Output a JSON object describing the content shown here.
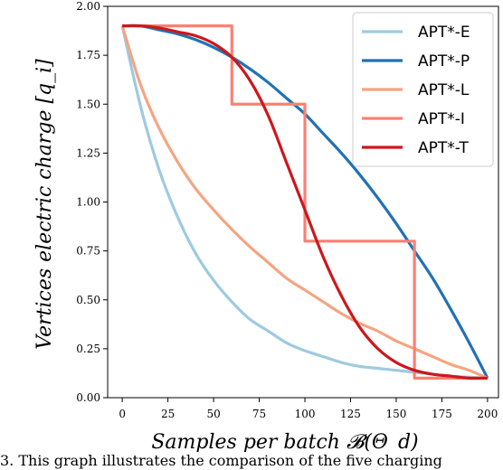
{
  "chart_data": {
    "type": "line",
    "xlabel": "Samples per batch 𝓑(Θ_d)",
    "ylabel": "Vertices electric charge [q_i]",
    "xlim": [
      -8,
      206
    ],
    "ylim": [
      0,
      2.0
    ],
    "xticks": [
      "0",
      "25",
      "50",
      "75",
      "100",
      "125",
      "150",
      "175",
      "200"
    ],
    "yticks": [
      "0.00",
      "0.25",
      "0.50",
      "0.75",
      "1.00",
      "1.25",
      "1.50",
      "1.75",
      "2.00"
    ],
    "grid": false,
    "legend_position": "upper-right",
    "series": [
      {
        "name": "APT*-E",
        "color": "#9ecae1",
        "x": [
          0,
          10,
          20,
          30,
          40,
          50,
          60,
          70,
          80,
          90,
          100,
          110,
          120,
          130,
          140,
          150,
          160,
          170,
          180,
          190,
          200
        ],
        "y": [
          1.9,
          1.49,
          1.17,
          0.93,
          0.74,
          0.6,
          0.49,
          0.4,
          0.34,
          0.28,
          0.24,
          0.21,
          0.18,
          0.16,
          0.15,
          0.14,
          0.13,
          0.12,
          0.11,
          0.105,
          0.1
        ]
      },
      {
        "name": "APT*-P",
        "color": "#2171b5",
        "x": [
          0,
          10,
          20,
          30,
          40,
          50,
          60,
          70,
          80,
          90,
          100,
          110,
          120,
          130,
          140,
          150,
          160,
          170,
          180,
          190,
          200
        ],
        "y": [
          1.9,
          1.9,
          1.88,
          1.86,
          1.83,
          1.79,
          1.74,
          1.68,
          1.61,
          1.53,
          1.45,
          1.35,
          1.25,
          1.14,
          1.02,
          0.89,
          0.75,
          0.61,
          0.45,
          0.28,
          0.1
        ]
      },
      {
        "name": "APT*-L",
        "color": "#f4a582",
        "x": [
          0,
          10,
          20,
          30,
          40,
          50,
          60,
          70,
          80,
          90,
          100,
          110,
          120,
          130,
          140,
          150,
          160,
          170,
          180,
          190,
          200
        ],
        "y": [
          1.9,
          1.6,
          1.38,
          1.21,
          1.07,
          0.96,
          0.86,
          0.77,
          0.69,
          0.61,
          0.55,
          0.49,
          0.43,
          0.38,
          0.34,
          0.29,
          0.25,
          0.21,
          0.17,
          0.14,
          0.1
        ]
      },
      {
        "name": "APT*-I",
        "color": "#fb8072",
        "x": [
          0,
          60,
          60,
          100,
          100,
          160,
          160,
          200
        ],
        "y": [
          1.9,
          1.9,
          1.5,
          1.5,
          0.8,
          0.8,
          0.1,
          0.1
        ]
      },
      {
        "name": "APT*-T",
        "color": "#cb181d",
        "x": [
          0,
          10,
          20,
          30,
          40,
          50,
          60,
          70,
          80,
          90,
          100,
          110,
          120,
          130,
          140,
          150,
          160,
          170,
          180,
          190,
          200
        ],
        "y": [
          1.9,
          1.9,
          1.89,
          1.87,
          1.85,
          1.81,
          1.74,
          1.62,
          1.44,
          1.2,
          0.96,
          0.72,
          0.52,
          0.36,
          0.25,
          0.18,
          0.14,
          0.12,
          0.11,
          0.1,
          0.1
        ]
      }
    ]
  },
  "caption_fragment": "3.  This graph illustrates the comparison of the five charging"
}
